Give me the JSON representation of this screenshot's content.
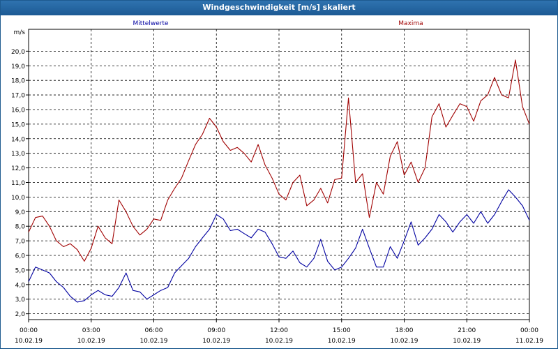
{
  "window": {
    "title": "Windgeschwindigkeit [m/s] skaliert"
  },
  "chart_data": {
    "type": "line",
    "title": "Windgeschwindigkeit [m/s] skaliert",
    "ylabel": "m/s",
    "xlabel": "",
    "ylim": [
      1.6,
      21.5
    ],
    "xlim": [
      0,
      24
    ],
    "yticks": [
      2.0,
      3.0,
      4.0,
      5.0,
      6.0,
      7.0,
      8.0,
      9.0,
      10.0,
      11.0,
      12.0,
      13.0,
      14.0,
      15.0,
      16.0,
      17.0,
      18.0,
      19.0,
      20.0
    ],
    "ytick_labels": [
      "2,0",
      "3,0",
      "4,0",
      "5,0",
      "6,0",
      "7,0",
      "8,0",
      "9,0",
      "10,0",
      "11,0",
      "12,0",
      "13,0",
      "14,0",
      "15,0",
      "16,0",
      "17,0",
      "18,0",
      "19,0",
      "20,0"
    ],
    "xticks": [
      {
        "x": 0,
        "time": "00:00",
        "date": "10.02.19"
      },
      {
        "x": 3,
        "time": "03:00",
        "date": "10.02.19"
      },
      {
        "x": 6,
        "time": "06:00",
        "date": "10.02.19"
      },
      {
        "x": 9,
        "time": "09:00",
        "date": "10.02.19"
      },
      {
        "x": 12,
        "time": "12:00",
        "date": "10.02.19"
      },
      {
        "x": 15,
        "time": "15:00",
        "date": "10.02.19"
      },
      {
        "x": 18,
        "time": "18:00",
        "date": "10.02.19"
      },
      {
        "x": 21,
        "time": "21:00",
        "date": "10.02.19"
      },
      {
        "x": 24,
        "time": "00:00",
        "date": "11.02.19"
      }
    ],
    "grid": true,
    "colors": {
      "mittelwerte": "#0000a0",
      "maxima": "#a00000",
      "grid": "#000000"
    },
    "series": [
      {
        "name": "Mittelwerte",
        "color": "#0000a0",
        "x": [
          0,
          0.33,
          0.67,
          1,
          1.33,
          1.67,
          2,
          2.33,
          2.67,
          3,
          3.33,
          3.67,
          4,
          4.33,
          4.67,
          5,
          5.33,
          5.67,
          6,
          6.33,
          6.67,
          7,
          7.33,
          7.67,
          8,
          8.33,
          8.67,
          9,
          9.33,
          9.67,
          10,
          10.33,
          10.67,
          11,
          11.33,
          11.67,
          12,
          12.33,
          12.67,
          13,
          13.33,
          13.67,
          14,
          14.33,
          14.67,
          15,
          15.33,
          15.67,
          16,
          16.33,
          16.67,
          17,
          17.33,
          17.67,
          18,
          18.33,
          18.67,
          19,
          19.33,
          19.67,
          20,
          20.33,
          20.67,
          21,
          21.33,
          21.67,
          22,
          22.33,
          22.67,
          23,
          23.33,
          23.67,
          24
        ],
        "values": [
          4.2,
          5.2,
          5.0,
          4.8,
          4.2,
          3.8,
          3.2,
          2.8,
          2.9,
          3.3,
          3.6,
          3.3,
          3.2,
          3.8,
          4.8,
          3.6,
          3.5,
          3.0,
          3.3,
          3.6,
          3.8,
          4.8,
          5.3,
          5.8,
          6.6,
          7.2,
          7.8,
          8.8,
          8.5,
          7.7,
          7.8,
          7.5,
          7.2,
          7.8,
          7.6,
          6.8,
          5.9,
          5.8,
          6.3,
          5.5,
          5.2,
          5.8,
          7.1,
          5.6,
          5.0,
          5.2,
          5.8,
          6.5,
          7.8,
          6.5,
          5.2,
          5.2,
          6.6,
          5.8,
          7.0,
          8.3,
          6.7,
          7.2,
          7.8,
          8.8,
          8.3,
          7.6,
          8.3,
          8.8,
          8.2,
          9.0,
          8.2,
          8.8,
          9.7,
          10.5,
          10.0,
          9.4,
          8.4
        ]
      },
      {
        "name": "Maxima",
        "color": "#a00000",
        "x": [
          0,
          0.33,
          0.67,
          1,
          1.33,
          1.67,
          2,
          2.33,
          2.67,
          3,
          3.33,
          3.67,
          4,
          4.33,
          4.67,
          5,
          5.33,
          5.67,
          6,
          6.33,
          6.67,
          7,
          7.33,
          7.67,
          8,
          8.33,
          8.67,
          9,
          9.33,
          9.67,
          10,
          10.33,
          10.67,
          11,
          11.33,
          11.67,
          12,
          12.33,
          12.67,
          13,
          13.33,
          13.67,
          14,
          14.33,
          14.67,
          15,
          15.33,
          15.67,
          16,
          16.33,
          16.67,
          17,
          17.33,
          17.67,
          18,
          18.33,
          18.67,
          19,
          19.33,
          19.67,
          20,
          20.33,
          20.67,
          21,
          21.33,
          21.67,
          22,
          22.33,
          22.67,
          23,
          23.33,
          23.67,
          24
        ],
        "values": [
          7.6,
          8.6,
          8.7,
          8.0,
          7.0,
          6.6,
          6.8,
          6.4,
          5.6,
          6.5,
          8.0,
          7.2,
          6.8,
          9.8,
          9.0,
          8.0,
          7.4,
          7.8,
          8.5,
          8.4,
          9.8,
          10.6,
          11.3,
          12.5,
          13.6,
          14.3,
          15.4,
          14.8,
          13.8,
          13.2,
          13.4,
          13.0,
          12.4,
          13.6,
          12.2,
          11.3,
          10.2,
          9.8,
          11.0,
          11.5,
          9.4,
          9.8,
          10.6,
          9.6,
          11.2,
          11.3,
          16.8,
          11.0,
          11.6,
          8.6,
          11.0,
          10.2,
          12.8,
          13.8,
          11.5,
          12.4,
          11.0,
          12.0,
          15.5,
          16.4,
          14.8,
          15.6,
          16.4,
          16.2,
          15.2,
          16.6,
          17.0,
          18.2,
          17.0,
          16.8,
          19.4,
          16.2,
          15.0
        ]
      }
    ]
  }
}
